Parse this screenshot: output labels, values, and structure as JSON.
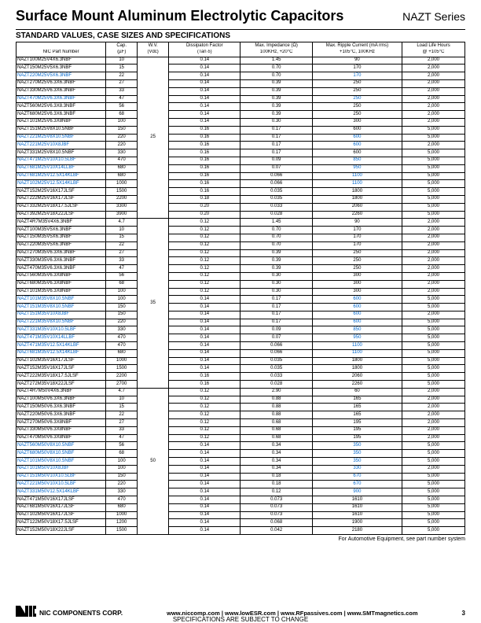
{
  "title": "Surface Mount Aluminum Electrolytic Capacitors",
  "series": "NAZT Series",
  "subheader": "STANDARD VALUES, CASE SIZES AND SPECIFICATIONS",
  "columns": [
    {
      "l1": "",
      "l2": "NIC Part Number"
    },
    {
      "l1": "Cap.",
      "l2": "(µF)"
    },
    {
      "l1": "W.V.",
      "l2": "(Vdc)"
    },
    {
      "l1": "Dissipaton Factor",
      "l2": "(Tan δ)"
    },
    {
      "l1": "Max. Impedance (Ω)",
      "l2": "100KHz, +20°C"
    },
    {
      "l1": "Max. Ripple Current (mA rms)",
      "l2": "+105°C, 100KHz"
    },
    {
      "l1": "Load Life Hours",
      "l2": "@ +105°C"
    }
  ],
  "groups": [
    {
      "wv": "25",
      "rows": [
        {
          "p": "NAZT100M25V4X6.3NBF",
          "c": "10",
          "d": "0.14",
          "z": "1.45",
          "r": "90",
          "l": "2,000"
        },
        {
          "p": "NAZT150M25V5X6.3NBF",
          "c": "15",
          "d": "0.14",
          "z": "0.70",
          "r": "170",
          "l": "2,000"
        },
        {
          "p": "NAZT220M25V5X6.3NBF",
          "c": "22",
          "d": "0.14",
          "z": "0.70",
          "r": "170",
          "l": "2,000",
          "hl": true
        },
        {
          "p": "NAZT270M25V6.3X6.3NBF",
          "c": "27",
          "d": "0.14",
          "z": "0.39",
          "r": "250",
          "l": "2,000"
        },
        {
          "p": "NAZT330M25V6.3X6.3NBF",
          "c": "33",
          "d": "0.14",
          "z": "0.39",
          "r": "250",
          "l": "2,000"
        },
        {
          "p": "NAZT470M25V6.3X6.3NBF",
          "c": "47",
          "d": "0.14",
          "z": "0.39",
          "r": "250",
          "l": "2,000",
          "hl": true
        },
        {
          "p": "NAZT560M25V6.3X8.3NBF",
          "c": "56",
          "d": "0.14",
          "z": "0.39",
          "r": "250",
          "l": "2,000"
        },
        {
          "p": "NAZT680M25V6.3X6.3NBF",
          "c": "68",
          "d": "0.14",
          "z": "0.39",
          "r": "250",
          "l": "2,000"
        },
        {
          "p": "NAZT101M25V6.3X8NBF",
          "c": "100",
          "d": "0.14",
          "z": "0.30",
          "r": "300",
          "l": "2,000"
        },
        {
          "p": "NAZT151M25V8X10.5NBF",
          "c": "150",
          "d": "0.16",
          "z": "0.17",
          "r": "600",
          "l": "5,000"
        },
        {
          "p": "NAZT221M25V8X10.5NBF",
          "c": "220",
          "d": "0.16",
          "z": "0.17",
          "r": "600",
          "l": "5,000",
          "hl": true
        },
        {
          "p": "NAZT221M25V10X8JBF",
          "c": "220",
          "d": "0.16",
          "z": "0.17",
          "r": "600",
          "l": "2,000",
          "hl": true
        },
        {
          "p": "NAZT331M25V8X10.5NBF",
          "c": "330",
          "d": "0.16",
          "z": "0.17",
          "r": "600",
          "l": "5,000"
        },
        {
          "p": "NAZT471M25V10X10.5LBF",
          "c": "470",
          "d": "0.16",
          "z": "0.09",
          "r": "850",
          "l": "5,000",
          "hl": true
        },
        {
          "p": "NAZT681M25V10X14LLBF",
          "c": "680",
          "d": "0.16",
          "z": "0.07",
          "r": "950",
          "l": "5,000",
          "hl": true
        },
        {
          "p": "NAZT681M25V12.5X14KLBF",
          "c": "680",
          "d": "0.16",
          "z": "0.066",
          "r": "1100",
          "l": "5,000",
          "hl": true
        },
        {
          "p": "NAZT102M25V12.5X14KLBF",
          "c": "1000",
          "d": "0.16",
          "z": "0.066",
          "r": "1100",
          "l": "5,000",
          "hl": true
        },
        {
          "p": "NAZT152M25V16X17JLSF",
          "c": "1500",
          "d": "0.16",
          "z": "0.035",
          "r": "1800",
          "l": "5,000"
        },
        {
          "p": "NAZT222M25V16X17JLSF",
          "c": "2200",
          "d": "0.18",
          "z": "0.035",
          "r": "1800",
          "l": "5,000"
        },
        {
          "p": "NAZT332M25V18X17.5JLSF",
          "c": "3300",
          "d": "0.20",
          "z": "0.033",
          "r": "2060",
          "l": "5,000"
        },
        {
          "p": "NAZT392M25V18X22JLSF",
          "c": "3900",
          "d": "0.20",
          "z": "0.028",
          "r": "2260",
          "l": "5,000"
        }
      ]
    },
    {
      "wv": "35",
      "rows": [
        {
          "p": "NAZT4R7M35V4X6.3NBF",
          "c": "4.7",
          "d": "0.12",
          "z": "1.45",
          "r": "90",
          "l": "2,000"
        },
        {
          "p": "NAZT100M35V5X6.3NBF",
          "c": "10",
          "d": "0.12",
          "z": "0.70",
          "r": "170",
          "l": "2,000"
        },
        {
          "p": "NAZT150M35V5X6.3NBF",
          "c": "15",
          "d": "0.12",
          "z": "0.70",
          "r": "170",
          "l": "2,000"
        },
        {
          "p": "NAZT220M35V5X6.3NBF",
          "c": "22",
          "d": "0.12",
          "z": "0.70",
          "r": "170",
          "l": "2,000"
        },
        {
          "p": "NAZT270M35V6.3X6.3NBF",
          "c": "27",
          "d": "0.12",
          "z": "0.39",
          "r": "250",
          "l": "2,000"
        },
        {
          "p": "NAZT330M35V6.3X6.3NBF",
          "c": "33",
          "d": "0.12",
          "z": "0.39",
          "r": "250",
          "l": "2,000"
        },
        {
          "p": "NAZT470M35V6.3X6.3NBF",
          "c": "47",
          "d": "0.12",
          "z": "0.39",
          "r": "250",
          "l": "2,000"
        },
        {
          "p": "NAZT560M35V6.3X8NBF",
          "c": "56",
          "d": "0.12",
          "z": "0.30",
          "r": "300",
          "l": "2,000"
        },
        {
          "p": "NAZT680M35V6.3X8NBF",
          "c": "68",
          "d": "0.12",
          "z": "0.30",
          "r": "300",
          "l": "2,000"
        },
        {
          "p": "NAZT101M35V6.3X8NBF",
          "c": "100",
          "d": "0.12",
          "z": "0.30",
          "r": "300",
          "l": "2,000"
        },
        {
          "p": "NAZT101M35V8X10.5NBF",
          "c": "100",
          "d": "0.14",
          "z": "0.17",
          "r": "600",
          "l": "5,000",
          "hl": true
        },
        {
          "p": "NAZT151M35V8X10.5NBF",
          "c": "150",
          "d": "0.14",
          "z": "0.17",
          "r": "600",
          "l": "5,000",
          "hl": true
        },
        {
          "p": "NAZT151M35V10X8JBF",
          "c": "150",
          "d": "0.14",
          "z": "0.17",
          "r": "600",
          "l": "2,000",
          "hl": true
        },
        {
          "p": "NAZT221M35V8X10.5NBF",
          "c": "220",
          "d": "0.14",
          "z": "0.17",
          "r": "600",
          "l": "5,000",
          "hl": true
        },
        {
          "p": "NAZT331M35V10X10.5LBF",
          "c": "330",
          "d": "0.14",
          "z": "0.09",
          "r": "850",
          "l": "5,000",
          "hl": true
        },
        {
          "p": "NAZT471M35V10X14LLBF",
          "c": "470",
          "d": "0.14",
          "z": "0.07",
          "r": "950",
          "l": "5,000",
          "hl": true
        },
        {
          "p": "NAZT471M35V12.5X14KLBF",
          "c": "470",
          "d": "0.14",
          "z": "0.066",
          "r": "1100",
          "l": "5,000",
          "hl": true
        },
        {
          "p": "NAZT681M35V12.5X14KLBF",
          "c": "680",
          "d": "0.14",
          "z": "0.066",
          "r": "1100",
          "l": "5,000",
          "hl": true
        },
        {
          "p": "NAZT102M35V16X17JLSF",
          "c": "1000",
          "d": "0.14",
          "z": "0.035",
          "r": "1800",
          "l": "5,000"
        },
        {
          "p": "NAZT152M35V16X17JLSF",
          "c": "1500",
          "d": "0.14",
          "z": "0.035",
          "r": "1800",
          "l": "5,000"
        },
        {
          "p": "NAZT222M35V18X17.5JLSF",
          "c": "2200",
          "d": "0.16",
          "z": "0.033",
          "r": "2060",
          "l": "5,000"
        },
        {
          "p": "NAZT272M35V18X22JLSF",
          "c": "2700",
          "d": "0.16",
          "z": "0.028",
          "r": "2260",
          "l": "5,000"
        }
      ]
    },
    {
      "wv": "50",
      "rows": [
        {
          "p": "NAZT4R7M50V4X6.3NBF",
          "c": "4.7",
          "d": "0.12",
          "z": "2.90",
          "r": "60",
          "l": "2,000"
        },
        {
          "p": "NAZT100M50V6.3X6.3NBF",
          "c": "10",
          "d": "0.12",
          "z": "0.88",
          "r": "165",
          "l": "2,000"
        },
        {
          "p": "NAZT150M50V6.3X6.3NBF",
          "c": "15",
          "d": "0.12",
          "z": "0.88",
          "r": "165",
          "l": "2,000"
        },
        {
          "p": "NAZT220M50V6.3X6.3NBF",
          "c": "22",
          "d": "0.12",
          "z": "0.88",
          "r": "165",
          "l": "2,000"
        },
        {
          "p": "NAZT270M50V6.3X8NBF",
          "c": "27",
          "d": "0.12",
          "z": "0.68",
          "r": "195",
          "l": "2,000"
        },
        {
          "p": "NAZT330M50V6.3X8NBF",
          "c": "33",
          "d": "0.12",
          "z": "0.68",
          "r": "195",
          "l": "2,000"
        },
        {
          "p": "NAZT470M50V6.3X8NBF",
          "c": "47",
          "d": "0.12",
          "z": "0.68",
          "r": "195",
          "l": "2,000"
        },
        {
          "p": "NAZT560M50V8X10.5NBF",
          "c": "56",
          "d": "0.14",
          "z": "0.34",
          "r": "350",
          "l": "5,000",
          "hl": true
        },
        {
          "p": "NAZT680M50V8X10.5NBF",
          "c": "68",
          "d": "0.14",
          "z": "0.34",
          "r": "350",
          "l": "5,000",
          "hl": true
        },
        {
          "p": "NAZT101M50V8X10.5NBF",
          "c": "100",
          "d": "0.14",
          "z": "0.34",
          "r": "350",
          "l": "5,000",
          "hl": true
        },
        {
          "p": "NAZT101M50V10X8JBF",
          "c": "100",
          "d": "0.14",
          "z": "0.34",
          "r": "330",
          "l": "2,000",
          "hl": true
        },
        {
          "p": "NAZT151M50V10X10.5LBF",
          "c": "150",
          "d": "0.14",
          "z": "0.18",
          "r": "670",
          "l": "5,000",
          "hl": true
        },
        {
          "p": "NAZT221M50V10X10.5LBF",
          "c": "220",
          "d": "0.14",
          "z": "0.18",
          "r": "670",
          "l": "5,000",
          "hl": true
        },
        {
          "p": "NAZT331M50V12.5X14KLBF",
          "c": "330",
          "d": "0.14",
          "z": "0.12",
          "r": "900",
          "l": "5,000",
          "hl": true
        },
        {
          "p": "NAZT471M50V16X17JLSF",
          "c": "470",
          "d": "0.14",
          "z": "0.073",
          "r": "1610",
          "l": "5,000"
        },
        {
          "p": "NAZT681M50V16X17JLSF",
          "c": "680",
          "d": "0.14",
          "z": "0.073",
          "r": "1610",
          "l": "5,000"
        },
        {
          "p": "NAZT102M50V16X17JLSF",
          "c": "1000",
          "d": "0.14",
          "z": "0.073",
          "r": "1610",
          "l": "5,000"
        },
        {
          "p": "NAZT122M50V18X17.5JLSF",
          "c": "1200",
          "d": "0.14",
          "z": "0.068",
          "r": "1900",
          "l": "5,000"
        },
        {
          "p": "NAZT152M50V18X22JLSF",
          "c": "1500",
          "d": "0.14",
          "z": "0.042",
          "r": "2180",
          "l": "5,000"
        }
      ]
    }
  ],
  "footnote": "For Automotive Equipment, see part number system",
  "corp": "NIC COMPONENTS CORP.",
  "links": "www.niccomp.com  |  www.lowESR.com  |  www.RFpassives.com  |  www.SMTmagnetics.com",
  "specline": "SPECIFICATIONS ARE SUBJECT TO CHANGE",
  "pagenum": "3"
}
